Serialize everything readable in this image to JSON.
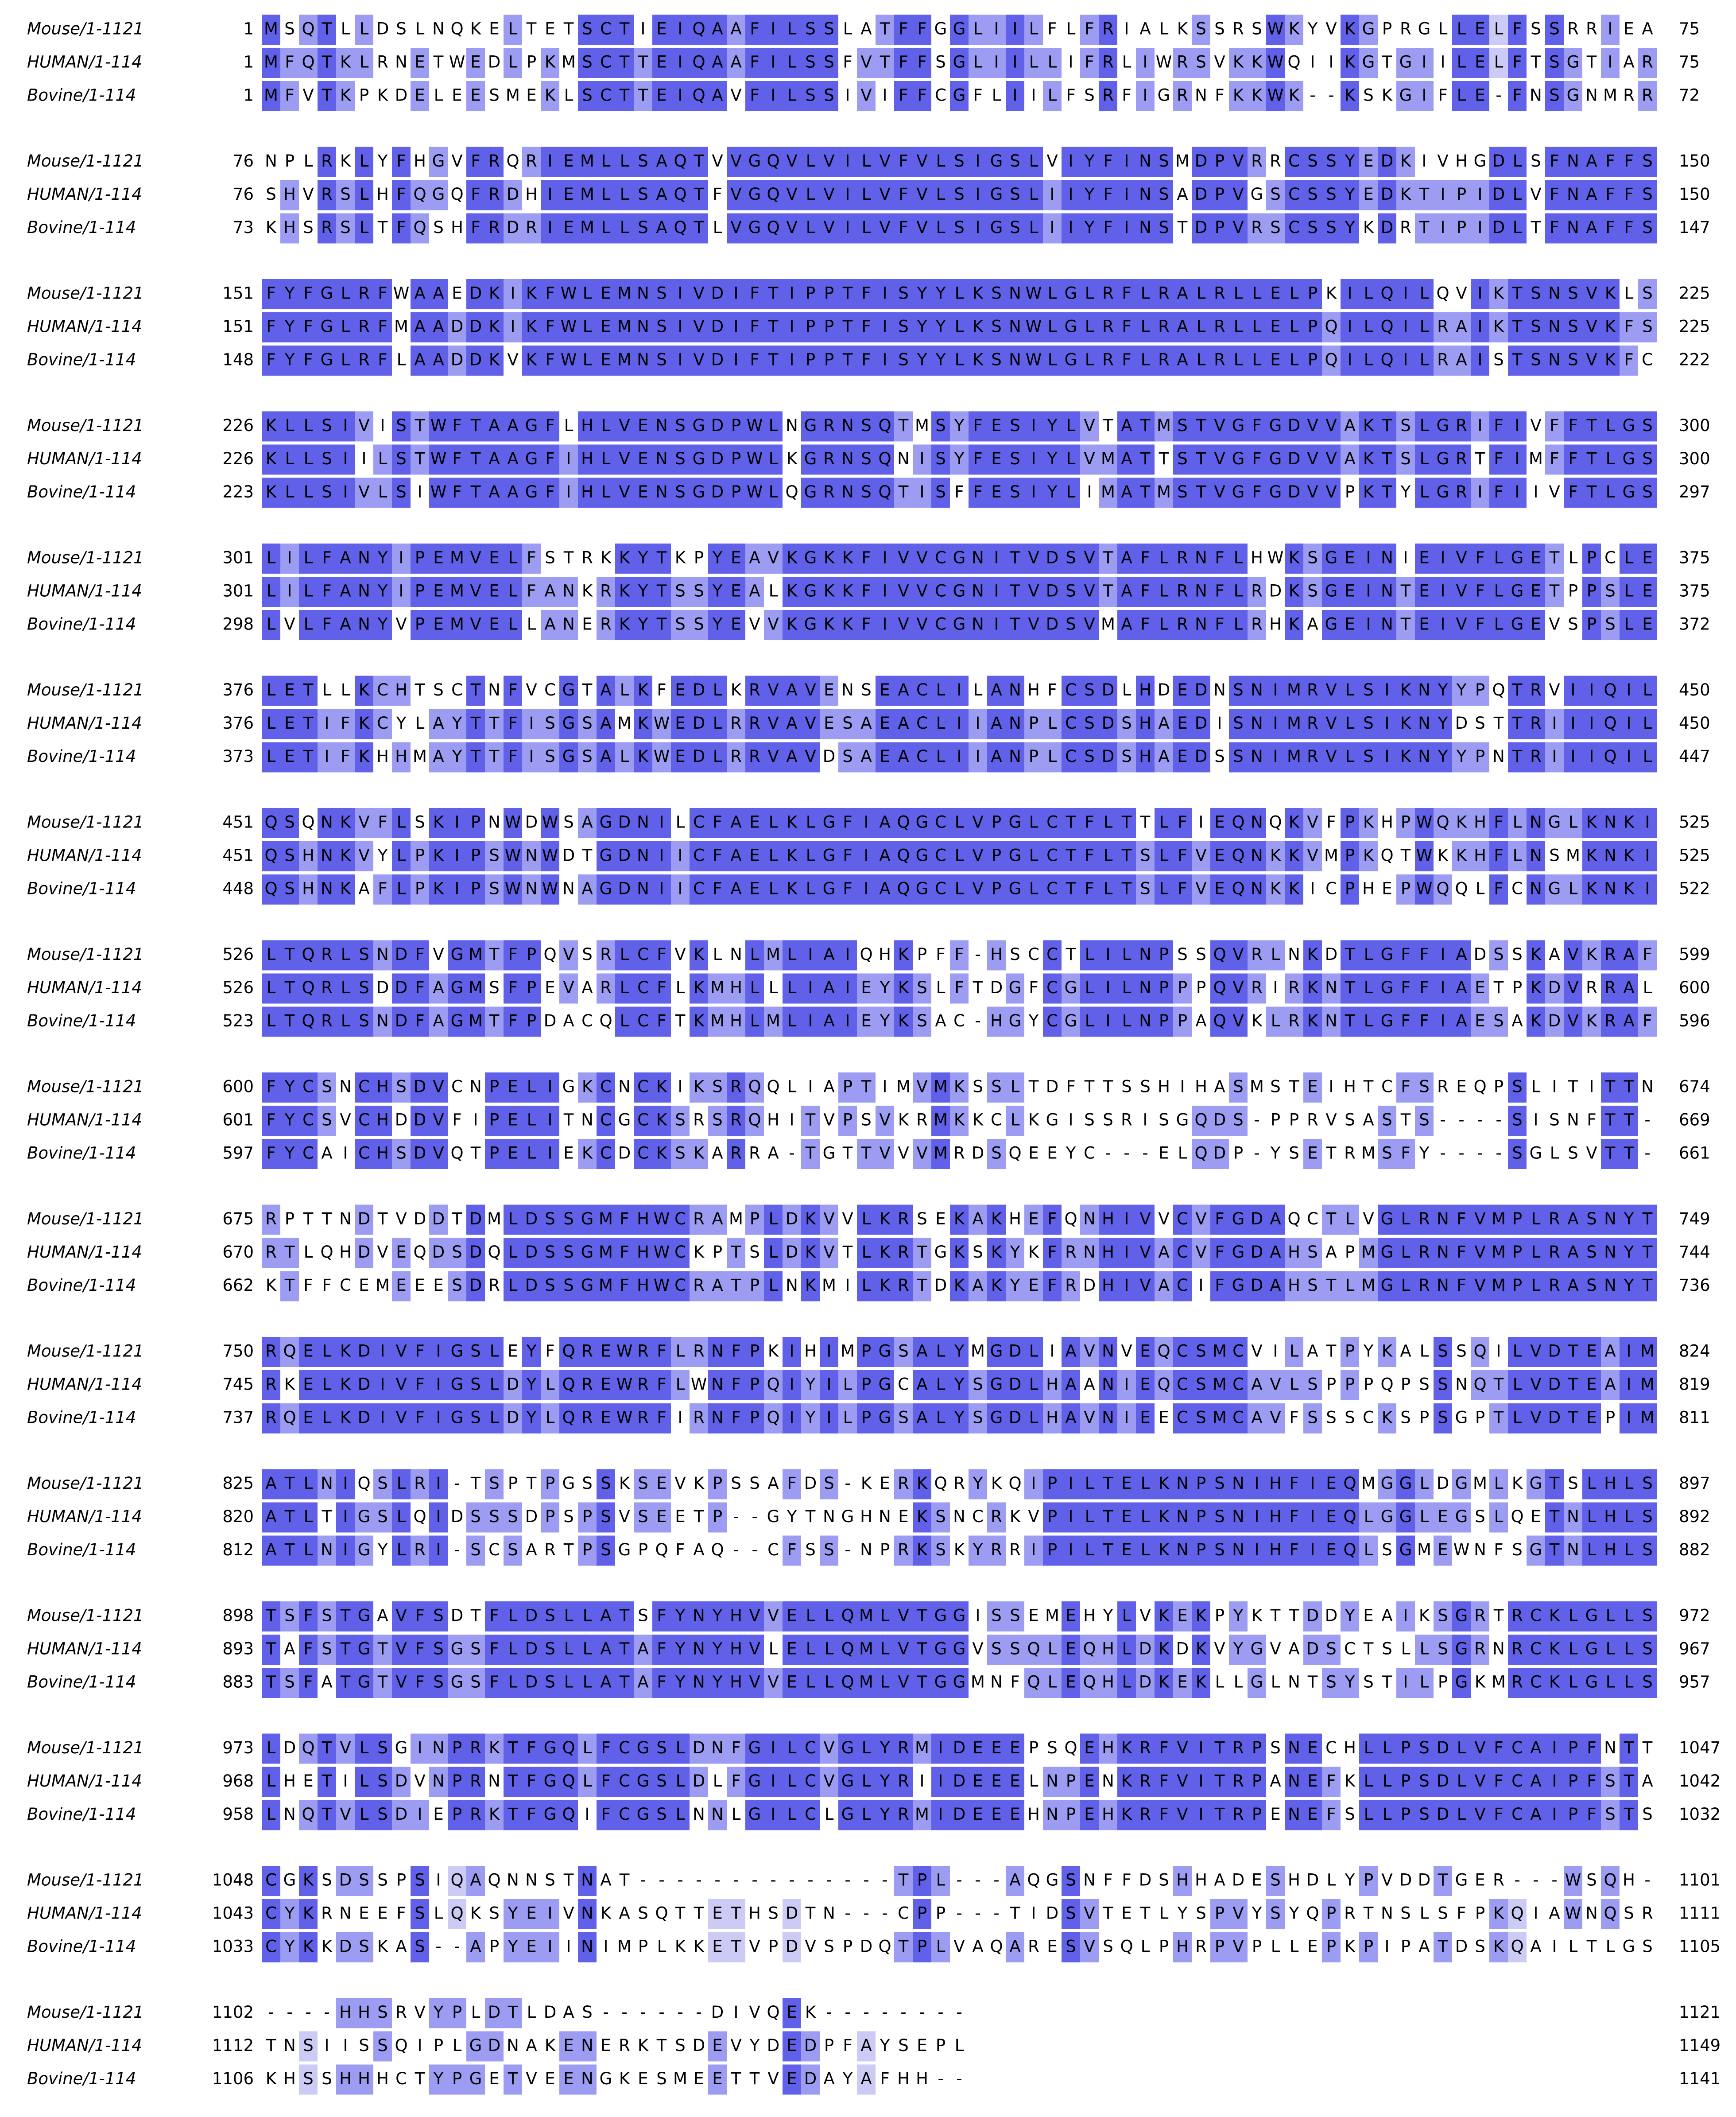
{
  "blocks": [
    {
      "rows": [
        {
          "name": "Mouse/1-1121",
          "start": 1,
          "sequence": "MSQTLLDSLNQKELTETSCTIEIQAAFILSSLATFFGGLIILFLFRIALKSSRSWKYVKGPRGLLELFSSRRIEA",
          "end": 75
        },
        {
          "name": "HUMAN/1-114",
          "start": 1,
          "sequence": "MFQTKLRNETWEDLPKMSCTTEIQAAFILSSFVTFFSGLIILLIFRLIWRSVKKWQIIKGTGIILELFTSGTIAR",
          "end": 75
        },
        {
          "name": "Bovine/1-114",
          "start": 1,
          "sequence": "MFVTKPKDELEESMEKLSCTTEIQAVFILSSIVIFFCGFLIILFSRFIGRNFKKWK--KSKGIFLE-FNSGNMRR",
          "end": 72
        }
      ]
    },
    {
      "rows": [
        {
          "name": "Mouse/1-1121",
          "start": 76,
          "sequence": "NPLRKLYFHGVFRQRIEMLLSAQTVVGQVLVILVFVLSIGSLVIYFINSMDPVRRCSSYEDKIVHGDLSFNAFFS",
          "end": 150
        },
        {
          "name": "HUMAN/1-114",
          "start": 76,
          "sequence": "SHVRSLHFQGQFRDHIEMLLSAQTFVGQVLVILVFVLSIGSLIIYFINSADPVGSCSSYEDKTIPIDLVFNAFFS",
          "end": 150
        },
        {
          "name": "Bovine/1-114",
          "start": 73,
          "sequence": "KHSRSLTFQSHFRDRIEMLLSAQTLVGQVLVILVFVLSIGSLIIYFINSTDPVRSCSSYKDRTIPIDLTFNAFFS",
          "end": 147
        }
      ]
    },
    {
      "rows": [
        {
          "name": "Mouse/1-1121",
          "start": 151,
          "sequence": "FYFGLRFWAAEDKIKFWLEMNSIVDIFTIPPTFISYYLKSNWLGLRFLRALRLLELPKILQILQVIKTSNSVKLS",
          "end": 225
        },
        {
          "name": "HUMAN/1-114",
          "start": 151,
          "sequence": "FYFGLRFMAADDKIKFWLEMNSIVDIFTIPPTFISYYLKSNWLGLRFLRALRLLELPQILQILRAIKTSNSVKFS",
          "end": 225
        },
        {
          "name": "Bovine/1-114",
          "start": 148,
          "sequence": "FYFGLRFLAADDKVKFWLEMNSIVDIFTIPPTFISYYLKSNWLGLRFLRALRLLELPQILQILRAISTSNSVKFC",
          "end": 222
        }
      ]
    },
    {
      "rows": [
        {
          "name": "Mouse/1-1121",
          "start": 226,
          "sequence": "KLLSIVISTWFTAAGFLHLVENSGDPWLNGRNSQTMSYFESIYLVTATMSTVGFGDVVAKTSLGRIFIVFFTLGS",
          "end": 300
        },
        {
          "name": "HUMAN/1-114",
          "start": 226,
          "sequence": "KLLSIILSTWFTAAGFIHLVENSGDPWLKGRNSQNISYFESIYLVMATTSTVGFGDVVAKTSLGRTFIMFFTLGS",
          "end": 300
        },
        {
          "name": "Bovine/1-114",
          "start": 223,
          "sequence": "KLLSIVLSIWFTAAGFIHLVENSGDPWLQGRNSQTISFFESIYLIMATMSTVGFGDVVPKTYLGRIFIIVFTLGS",
          "end": 297
        }
      ]
    },
    {
      "rows": [
        {
          "name": "Mouse/1-1121",
          "start": 301,
          "sequence": "LILFANYIPEMVELFSTRKKYTKPYEAVKGKKFIVVCGNITVDSVTAFLRNFLHWKSGEINIEIVFLGETLPCLE",
          "end": 375
        },
        {
          "name": "HUMAN/1-114",
          "start": 301,
          "sequence": "LILFANYIPEMVELFANKRKYTSSYEALKGKKFIVVCGNITVDSVTAFLRNFLRDKSGEINTEIVFLGETPPSLE",
          "end": 375
        },
        {
          "name": "Bovine/1-114",
          "start": 298,
          "sequence": "LVLFANYVPEMVELLANERKYTSSYEVVKGKKFIVVCGNITVDSVMAFLRNFLRHKAGEINTEIVFLGEVSPSLE",
          "end": 372
        }
      ]
    },
    {
      "rows": [
        {
          "name": "Mouse/1-1121",
          "start": 376,
          "sequence": "LETLLKCHTSCTNFVCGTALKFEDLKRVAVENSEACLILANHFCSDLHDEDNSNIMRVLSIKNYYPQTRVIIQIL",
          "end": 450
        },
        {
          "name": "HUMAN/1-114",
          "start": 376,
          "sequence": "LETIFKCYLAYTTFISGSAMKWEDLRRVAVESAEACLIIANPLCSDSHAEDISNIMRVLSIKNYDSTTRIIIQIL",
          "end": 450
        },
        {
          "name": "Bovine/1-114",
          "start": 373,
          "sequence": "LETIFKHHMAYTTFISGSALKWEDLRRVAVDSAEACLIIANPLCSDSHAEDSSNIMRVLSIKNYYPNTRIIIQIL",
          "end": 447
        }
      ]
    },
    {
      "rows": [
        {
          "name": "Mouse/1-1121",
          "start": 451,
          "sequence": "QSQNKVFLSKIPNWDWSAGDNILCFAELKLGFIAQGCLVPGLCTFLTTLFIEQNQKVFPKHPWQKHFLNGLKNKI",
          "end": 525
        },
        {
          "name": "HUMAN/1-114",
          "start": 451,
          "sequence": "QSHNKVYLPKIPSWNWDTGDNIICFAELKLGFIAQGCLVPGLCTFLTSLFVEQNKKVMPKQTWKKHFLNSMKNKI",
          "end": 525
        },
        {
          "name": "Bovine/1-114",
          "start": 448,
          "sequence": "QSHNKAFLPKIPSWNWNAGDNIICFAELKLGFIAQGCLVPGLCTFLTSLFVEQNKKICPHEPWQQLFCNGLKNKI",
          "end": 522
        }
      ]
    },
    {
      "rows": [
        {
          "name": "Mouse/1-1121",
          "start": 526,
          "sequence": "LTQRLSNDFVGMTFPQVSRLCFVKLNLMLIAIQHKPFF-HSCCTLILNPSSQVRLNKDTLGFFIADSSKAVKRAF",
          "end": 599
        },
        {
          "name": "HUMAN/1-114",
          "start": 526,
          "sequence": "LTQRLSDDFAGMSFPEVARLCFLKMHLLLIAIEYKSLFTDGFCGLILNPPPQVRIRKNTLGFFIAETPKDVRRAL",
          "end": 600
        },
        {
          "name": "Bovine/1-114",
          "start": 523,
          "sequence": "LTQRLSNDFAGMTFPDACQLCFTKMHLMLIAIEYKSAC-HGYCGLILNPPAQVKLRKNTLGFFIAESAKDVKRAF",
          "end": 596
        }
      ]
    },
    {
      "rows": [
        {
          "name": "Mouse/1-1121",
          "start": 600,
          "sequence": "FYCSNCHSDVCNPELIGKCNCKIKSRQQLIAPTIMVMKSSLTDFTTSSHIHASMSTEIHTCFSREQPSLITITTN",
          "end": 674
        },
        {
          "name": "HUMAN/1-114",
          "start": 601,
          "sequence": "FYCSVCHDDVFIPELITNCGCKSRSRQHITVPSVKRMKKCLKGISSRISGQDS-PPRVSASTS----SISNFTT-",
          "end": 669
        },
        {
          "name": "Bovine/1-114",
          "start": 597,
          "sequence": "FYCAICHSDVQTPELIEKCDCKSKARRA-TGTTVVVMRDSQEEYC---ELQDP-YSETRMSFY----SGLSVTT-",
          "end": 661
        }
      ]
    },
    {
      "rows": [
        {
          "name": "Mouse/1-1121",
          "start": 675,
          "sequence": "RPTTNDTVDDTDMLDSSGMFHWCRAMPLDKVVLKRSEKAKHEFQNHIVVCVFGDAQCTLVGLRNFVMPLRASNYT",
          "end": 749
        },
        {
          "name": "HUMAN/1-114",
          "start": 670,
          "sequence": "RTLQHDVEQDSDQLDSSGMFHWCKPTSLDKVTLKRTGKSKYKFRNHIVACVFGDAHSAPMGLRNFVMPLRASNYT",
          "end": 744
        },
        {
          "name": "Bovine/1-114",
          "start": 662,
          "sequence": "KTFFCEMEEESDRLDSSGMFHWCRATPLNKMILKRTDKAKYEFRDHIVACIFGDAHSTLMGLRNFVMPLRASNYT",
          "end": 736
        }
      ]
    },
    {
      "rows": [
        {
          "name": "Mouse/1-1121",
          "start": 750,
          "sequence": "RQELKDIVFIGSLEYFQREWRFLRNFPKIHIMPGSALYMGDLIAVNVEQCSMCVILATPYKALSSQILVDTEAIM",
          "end": 824
        },
        {
          "name": "HUMAN/1-114",
          "start": 745,
          "sequence": "RKELKDIVFIGSLDYLQREWRFLWNFPQIYILPGCALYSGDLHAANIEQCSMCAVLSPPPQPSSNQTLVDTEAIM",
          "end": 819
        },
        {
          "name": "Bovine/1-114",
          "start": 737,
          "sequence": "RQELKDIVFIGSLDYLQREWRFIRNFPQIYILPGSALYSGDLHAVNIEECSMCAVFSSSCKSPSGPTLVDTEPIM",
          "end": 811
        }
      ]
    },
    {
      "rows": [
        {
          "name": "Mouse/1-1121",
          "start": 825,
          "sequence": "ATLNIQSLRI-TSPTPGSSKSEVKPSSAFDS-KERKQRYKQIPILTELKNPSNIHFIEQMGGLDGMLKGTSLHLS",
          "end": 897
        },
        {
          "name": "HUMAN/1-114",
          "start": 820,
          "sequence": "ATLTIGSLQIDSSSDPSPSVSEETP--GYTNGHNEKSNCRKVPILTELKNPSNIHFIEQLGGLEGSLQETNLHLS",
          "end": 892
        },
        {
          "name": "Bovine/1-114",
          "start": 812,
          "sequence": "ATLNIGYLRI-SCSARTPSGPQFAQ--CFSS-NPRKSKYRRIPILTELKNPSNIHFIEQLSGMEWNFSGTNLHLS",
          "end": 882
        }
      ]
    },
    {
      "rows": [
        {
          "name": "Mouse/1-1121",
          "start": 898,
          "sequence": "TSFSTGAVFSDTFLDSLLATSFYNYHVVELLQMLVTGGISSEMEHYLVKEKPYKTTDDYEAIKSGRTRCKLGLLS",
          "end": 972
        },
        {
          "name": "HUMAN/1-114",
          "start": 893,
          "sequence": "TAFSTGTVFSGSFLDSLLATAFYNYHVLELLQMLVTGGVSSQLEQHLDKDKVYGVADSCTSLLSGRNRCKLGLLS",
          "end": 967
        },
        {
          "name": "Bovine/1-114",
          "start": 883,
          "sequence": "TSFATGTVFSGSFLDSLLATAFYNYHVVELLQMLVTGGMNFQLEQHLDKEKLLGLNTSYSTILPGKMRCKLGLLS",
          "end": 957
        }
      ]
    },
    {
      "rows": [
        {
          "name": "Mouse/1-1121",
          "start": 973,
          "sequence": "LDQTVLSGINPRKTFGQLFCGSLDNFGILCVGLYRMIDEEEPSQEHKRFVITRPSNECHLLPSDLVFCAIPFNTT",
          "end": 1047
        },
        {
          "name": "HUMAN/1-114",
          "start": 968,
          "sequence": "LHETILSDVNPRNTFGQLFCGSLDLFGILCVGLYRIIDEEELNPENKRFVITRPANEFKLLPSDLVFCAIPFSTA",
          "end": 1042
        },
        {
          "name": "Bovine/1-114",
          "start": 958,
          "sequence": "LNQTVLSDIEPRKTFGQIFCGSLNNLGILCLGLYRMIDEEEHNPEHKRFVITRPENEFSLLPSDLVFCAIPFSTS",
          "end": 1032
        }
      ]
    },
    {
      "rows": [
        {
          "name": "Mouse/1-1121",
          "start": 1048,
          "sequence": "CGKSDSSPSIQAQNNSTNAT--------------TPL---AQGSNFFDSHHADESHDLYPVDDTGER---WSQH-",
          "end": 1101
        },
        {
          "name": "HUMAN/1-114",
          "start": 1043,
          "sequence": "CYKRNEEFSLQKSYEIVNKASQTTETHSDTN---CPP---TIDSVTETLYSPVYSYQPRTNSLSFPKQIAWNQSR",
          "end": 1111
        },
        {
          "name": "Bovine/1-114",
          "start": 1033,
          "sequence": "CYKKDSKAS--APYEIINIMPLKKETVPDVSPDQTPLVAQARESVSQLPHRPVPLLEPKPIPATDSKQAILTLGS",
          "end": 1105
        }
      ]
    },
    {
      "rows": [
        {
          "name": "Mouse/1-1121",
          "start": 1102,
          "sequence": "----HHSRVYPLDTLDAS------DIVQEK--------",
          "end": 1121
        },
        {
          "name": "HUMAN/1-114",
          "start": 1112,
          "sequence": "TNSIISSQIPLGDNAKENERKTSDEVYDEDPFAYSEPL",
          "end": 1149
        },
        {
          "name": "Bovine/1-114",
          "start": 1106,
          "sequence": "KHSSHHHCTYPGETVEENGKESMEETTVEDAYAFHH--",
          "end": 1141
        }
      ]
    }
  ]
}
